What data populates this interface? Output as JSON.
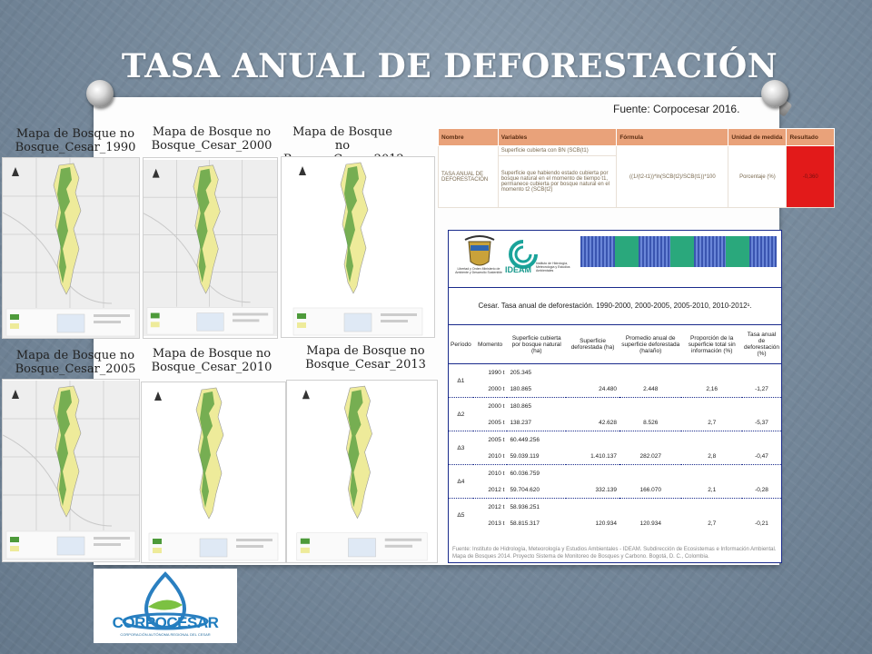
{
  "slide": {
    "title": "TASA ANUAL DE DEFORESTACIÓN",
    "source": "Fuente: Corpocesar 2016."
  },
  "maps": [
    {
      "label": "Mapa de Bosque no Bosque_Cesar_1990"
    },
    {
      "label": "Mapa de Bosque no Bosque_Cesar_2000"
    },
    {
      "label": "Mapa de Bosque no Bosque_Cesar_2012"
    },
    {
      "label": "Mapa de Bosque no Bosque_Cesar_2005"
    },
    {
      "label": "Mapa de Bosque no Bosque_Cesar_2010"
    },
    {
      "label": "Mapa de Bosque no Bosque_Cesar_2013"
    }
  ],
  "formula_table": {
    "headers": [
      "Nombre",
      "Variables",
      "Fórmula",
      "Unidad de medida",
      "Resultado"
    ],
    "name": "TASA ANUAL DE DEFORESTACIÓN",
    "var1": "Superficie cubierta con BN (SCB(t1)",
    "var2": "Superficie que habiendo estado cubierta por bosque natural en el momento de tiempo t1, permanece cubierta por bosque natural en el momento t2 (SCB(t2)",
    "formula": "((1/(t2-t1))*ln(SCB(t2)/SCB(t1))*100",
    "unit": "Porcentaje (%)",
    "result": "-0,360"
  },
  "data_table": {
    "title": "Cesar. Tasa anual de deforestación. 1990-2000, 2000-2005, 2005-2010, 2010-2012¹.",
    "headers": [
      "Período",
      "Momento",
      "Superficie cubierta por bosque natural (ha)",
      "Superficie deforestada (ha)",
      "Promedio anual de superficie deforestada (ha/año)",
      "Proporción de la superficie total sin información (%)",
      "Tasa anual de deforestación (%)"
    ],
    "rows": [
      {
        "period": "Δ1",
        "m1": "1990 t",
        "a1": "205.345",
        "m2": "2000 t",
        "a2": "180.865",
        "def": "24.480",
        "avg": "2.448",
        "prop": "2,16",
        "rate": "-1,27"
      },
      {
        "period": "Δ2",
        "m1": "2000 t",
        "a1": "180.865",
        "m2": "2005 t",
        "a2": "138.237",
        "def": "42.628",
        "avg": "8.526",
        "prop": "2,7",
        "rate": "-5,37"
      },
      {
        "period": "Δ3",
        "m1": "2005 t",
        "a1": "60.449.256",
        "m2": "2010 t",
        "a2": "59.039.119",
        "def": "1.410.137",
        "avg": "282.027",
        "prop": "2,8",
        "rate": "-0,47"
      },
      {
        "period": "Δ4",
        "m1": "2010 t",
        "a1": "60.036.759",
        "m2": "2012 t",
        "a2": "59.704.620",
        "def": "332.139",
        "avg": "166.070",
        "prop": "2,1",
        "rate": "-0,28"
      },
      {
        "period": "Δ5",
        "m1": "2012 t",
        "a1": "58.936.251",
        "m2": "2013 t",
        "a2": "58.815.317",
        "def": "120.934",
        "avg": "120.934",
        "prop": "2,7",
        "rate": "-0,21"
      }
    ],
    "footnote": "Fuente: Instituto de Hidrología, Meteorología y Estudios Ambientales - IDEAM. Subdirección de Ecosistemas e Información Ambiental. Mapa de Bosques 2014. Proyecto Sistema de Monitoreo de Bosques y Carbono. Bogotá, D. C., Colombia.",
    "logo_ideam": "IDEAM",
    "logo_ideam_sub": "Instituto de Hidrología, Meteorología y Estudios Ambientales",
    "logo_minambiente": "Libertad y Orden Ministerio de Ambiente y Desarrollo Sostenible"
  },
  "logo": {
    "text": "CORPOCESAR",
    "subtext": "CORPORACIÓN AUTÓNOMA REGIONAL DEL CESAR"
  },
  "colors": {
    "accent_orange": "#e9a27a",
    "result_red": "#e21a1a",
    "table_border": "#1a2b8c"
  }
}
